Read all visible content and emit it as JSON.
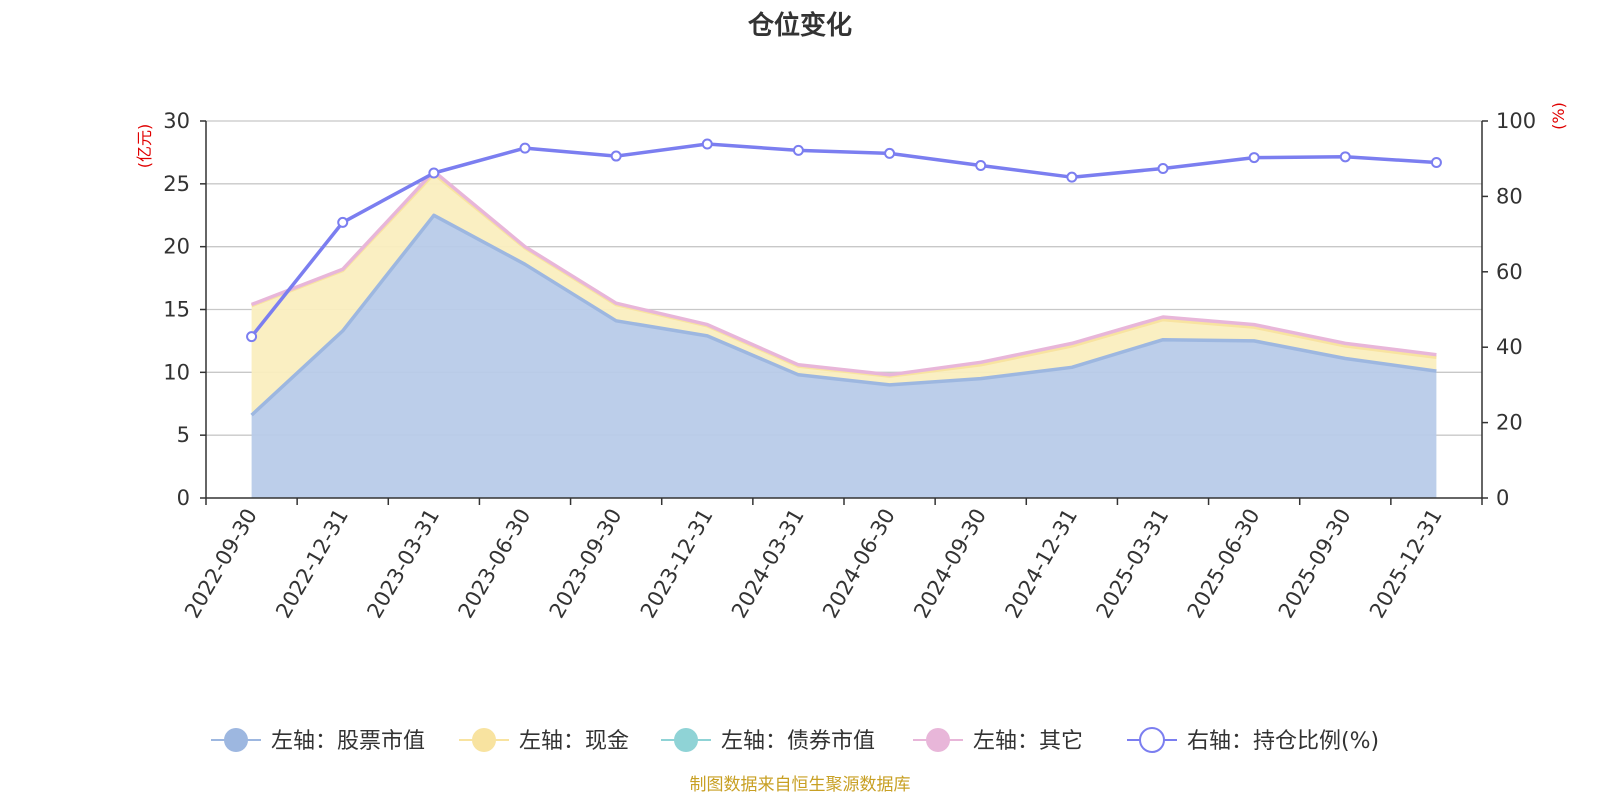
{
  "chart_data": {
    "type": "area",
    "title": "仓位变化",
    "left_unit": "(亿元)",
    "right_unit": "(%)",
    "source": "制图数据来自恒生聚源数据库",
    "categories": [
      "2022-09-30",
      "2022-12-31",
      "2023-03-31",
      "2023-06-30",
      "2023-09-30",
      "2023-12-31",
      "2024-03-31",
      "2024-06-30",
      "2024-09-30",
      "2024-12-31",
      "2025-03-31",
      "2025-06-30",
      "2025-09-30",
      "2025-12-31"
    ],
    "left_axis": {
      "min": 0,
      "max": 30,
      "ticks": [
        0,
        5,
        10,
        15,
        20,
        25,
        30
      ]
    },
    "right_axis": {
      "min": 0,
      "max": 100,
      "ticks": [
        0,
        20,
        40,
        60,
        80,
        100
      ]
    },
    "series": [
      {
        "name": "左轴：股票市值",
        "axis": "left",
        "stack": true,
        "color": "#9db7e0",
        "fill": "#b8cbe9",
        "values": [
          6.6,
          13.3,
          22.5,
          18.6,
          14.1,
          12.9,
          9.8,
          9.0,
          9.5,
          10.4,
          12.6,
          12.5,
          11.1,
          10.1
        ]
      },
      {
        "name": "左轴：现金",
        "axis": "left",
        "stack": true,
        "color": "#f8e3a0",
        "fill": "#faeebf",
        "values": [
          8.7,
          4.8,
          3.3,
          1.3,
          1.3,
          0.8,
          0.7,
          0.7,
          1.1,
          1.7,
          1.6,
          1.1,
          1.0,
          1.1
        ]
      },
      {
        "name": "左轴：债券市值",
        "axis": "left",
        "stack": true,
        "color": "#8fd3d6",
        "fill": "#bfe6e8",
        "values": [
          0,
          0,
          0,
          0,
          0,
          0,
          0,
          0,
          0,
          0,
          0,
          0,
          0,
          0
        ]
      },
      {
        "name": "左轴：其它",
        "axis": "left",
        "stack": true,
        "color": "#e8b6d9",
        "fill": "#f2d6ea",
        "values": [
          0.1,
          0.1,
          0.2,
          0.1,
          0.1,
          0.1,
          0.1,
          0.1,
          0.2,
          0.2,
          0.2,
          0.2,
          0.2,
          0.2
        ]
      },
      {
        "name": "右轴：持仓比例(%)",
        "axis": "right",
        "stack": false,
        "color": "#7b7ef0",
        "fill": "none",
        "values": [
          42.8,
          73.1,
          86.2,
          92.8,
          90.7,
          93.9,
          92.2,
          91.4,
          88.2,
          85.1,
          87.4,
          90.3,
          90.5,
          89.0
        ]
      }
    ]
  }
}
